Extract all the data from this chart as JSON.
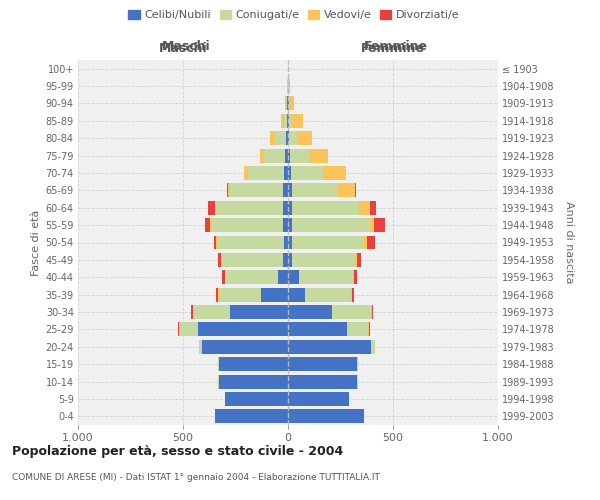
{
  "age_groups": [
    "0-4",
    "5-9",
    "10-14",
    "15-19",
    "20-24",
    "25-29",
    "30-34",
    "35-39",
    "40-44",
    "45-49",
    "50-54",
    "55-59",
    "60-64",
    "65-69",
    "70-74",
    "75-79",
    "80-84",
    "85-89",
    "90-94",
    "95-99",
    "100+"
  ],
  "birth_years": [
    "1999-2003",
    "1994-1998",
    "1989-1993",
    "1984-1988",
    "1979-1983",
    "1974-1978",
    "1969-1973",
    "1964-1968",
    "1959-1963",
    "1954-1958",
    "1949-1953",
    "1944-1948",
    "1939-1943",
    "1934-1938",
    "1929-1933",
    "1924-1928",
    "1919-1923",
    "1914-1918",
    "1909-1913",
    "1904-1908",
    "≤ 1903"
  ],
  "maschi": {
    "celibi": [
      350,
      300,
      330,
      330,
      410,
      430,
      275,
      130,
      50,
      25,
      20,
      25,
      25,
      25,
      20,
      15,
      10,
      5,
      3,
      2,
      0
    ],
    "coniugati": [
      0,
      0,
      2,
      5,
      15,
      85,
      175,
      200,
      250,
      290,
      320,
      340,
      320,
      250,
      170,
      100,
      50,
      15,
      5,
      2,
      0
    ],
    "vedovi": [
      0,
      0,
      0,
      0,
      0,
      2,
      2,
      2,
      2,
      2,
      3,
      5,
      5,
      10,
      20,
      20,
      25,
      15,
      5,
      2,
      0
    ],
    "divorziati": [
      0,
      0,
      0,
      0,
      0,
      5,
      10,
      10,
      10,
      15,
      10,
      25,
      30,
      5,
      0,
      0,
      0,
      0,
      0,
      0,
      0
    ]
  },
  "femmine": {
    "nubili": [
      360,
      290,
      330,
      330,
      395,
      280,
      210,
      80,
      50,
      20,
      20,
      20,
      20,
      20,
      15,
      10,
      5,
      5,
      3,
      2,
      0
    ],
    "coniugate": [
      0,
      0,
      2,
      5,
      20,
      100,
      185,
      220,
      260,
      300,
      340,
      370,
      320,
      220,
      150,
      90,
      40,
      15,
      5,
      2,
      0
    ],
    "vedove": [
      0,
      0,
      0,
      0,
      0,
      5,
      5,
      5,
      5,
      8,
      15,
      20,
      50,
      80,
      110,
      90,
      70,
      50,
      20,
      5,
      1
    ],
    "divorziate": [
      0,
      0,
      0,
      0,
      0,
      5,
      5,
      10,
      15,
      20,
      40,
      50,
      30,
      5,
      0,
      0,
      0,
      0,
      0,
      0,
      0
    ]
  },
  "colors": {
    "celibi": "#4472c4",
    "coniugati": "#c5d9a0",
    "vedovi": "#fac45a",
    "divorziati": "#e84040"
  },
  "xlim": 1000,
  "title": "Popolazione per età, sesso e stato civile - 2004",
  "subtitle": "COMUNE DI ARESE (MI) - Dati ISTAT 1° gennaio 2004 - Elaborazione TUTTITALIA.IT",
  "ylabel_left": "Fasce di età",
  "ylabel_right": "Anni di nascita",
  "xlabel_left": "Maschi",
  "xlabel_right": "Femmine",
  "bg_color": "#f0f0f0",
  "grid_color": "#cccccc"
}
